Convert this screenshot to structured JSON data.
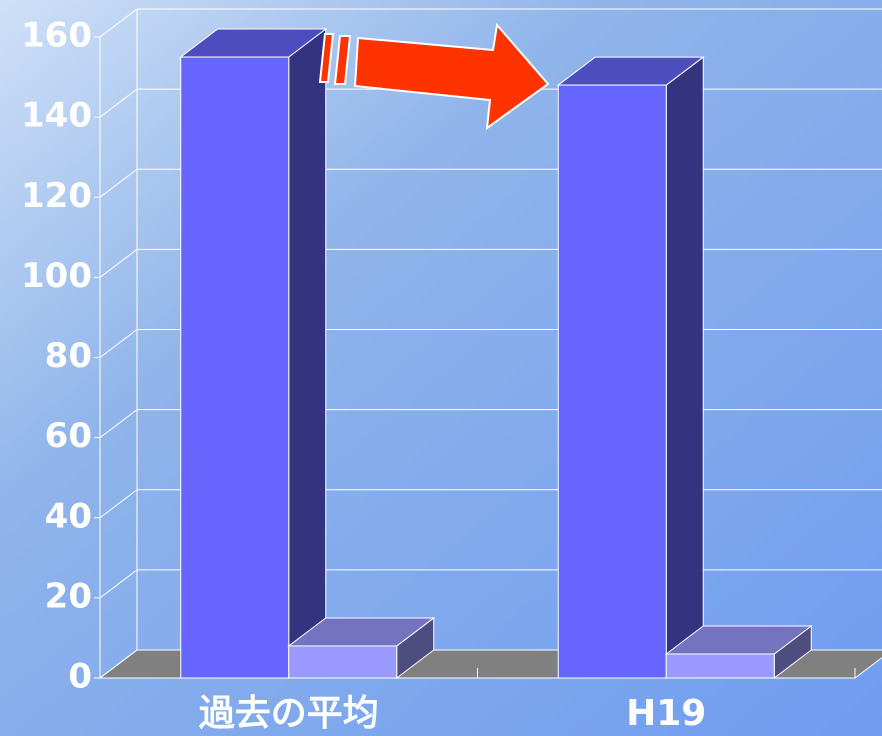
{
  "chart_data": {
    "type": "bar3d",
    "categories": [
      "過去の平均",
      "H19"
    ],
    "series": [
      {
        "color": "#6666ff",
        "values": [
          155,
          148
        ]
      },
      {
        "color": "#9999ff",
        "values": [
          8,
          6
        ]
      }
    ],
    "ylim": [
      0,
      160
    ],
    "yticks": [
      0,
      20,
      40,
      60,
      80,
      100,
      120,
      140,
      160
    ],
    "grid": true
  }
}
